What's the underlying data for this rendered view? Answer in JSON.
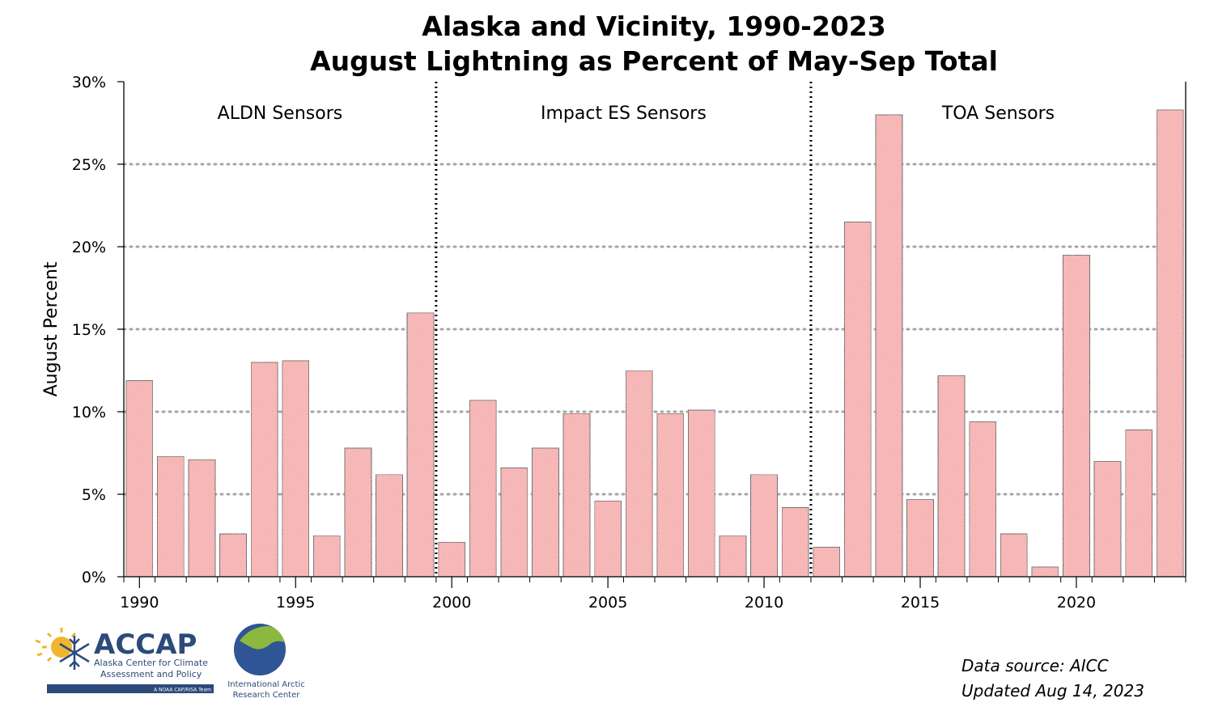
{
  "chart_data": {
    "type": "bar",
    "title": "Alaska and Vicinity, 1990-2023",
    "subtitle": "August Lightning as Percent of May-Sep Total",
    "xlabel": "",
    "ylabel": "August Percent",
    "ylim": [
      0,
      30
    ],
    "yticks": [
      "0%",
      "5%",
      "10%",
      "15%",
      "20%",
      "25%",
      "30%"
    ],
    "xticks": [
      "1990",
      "1995",
      "2000",
      "2005",
      "2010",
      "2015",
      "2020"
    ],
    "grid": "horizontal dotted",
    "x": [
      1990,
      1991,
      1992,
      1993,
      1994,
      1995,
      1996,
      1997,
      1998,
      1999,
      2000,
      2001,
      2002,
      2003,
      2004,
      2005,
      2006,
      2007,
      2008,
      2009,
      2010,
      2011,
      2012,
      2013,
      2014,
      2015,
      2016,
      2017,
      2018,
      2019,
      2020,
      2021,
      2022,
      2023
    ],
    "values": [
      11.9,
      7.3,
      7.1,
      2.6,
      13.0,
      13.1,
      2.5,
      7.8,
      6.2,
      16.0,
      2.1,
      10.7,
      6.6,
      7.8,
      9.9,
      4.6,
      12.5,
      9.9,
      10.1,
      2.5,
      6.2,
      4.2,
      1.8,
      21.5,
      28.0,
      4.7,
      12.2,
      9.4,
      2.6,
      0.6,
      19.5,
      7.0,
      8.9,
      28.3
    ],
    "bar_color": "#f5a3a3",
    "dividers": [
      1999.5,
      2011.5
    ],
    "regions": [
      {
        "label": "ALDN Sensors",
        "center_year": 1994.5
      },
      {
        "label": "Impact ES Sensors",
        "center_year": 2005.5
      },
      {
        "label": "TOA Sensors",
        "center_year": 2017.5
      }
    ]
  },
  "credits": {
    "line1": "Data source: AICC",
    "line2": "Updated Aug 14, 2023"
  },
  "logos": {
    "accap_name": "ACCAP",
    "accap_line1": "Alaska Center for Climate",
    "accap_line2": "Assessment and Policy",
    "accap_tag": "A NOAA CAP/RISA Team",
    "iarc_line1": "International Arctic",
    "iarc_line2": "Research Center"
  }
}
